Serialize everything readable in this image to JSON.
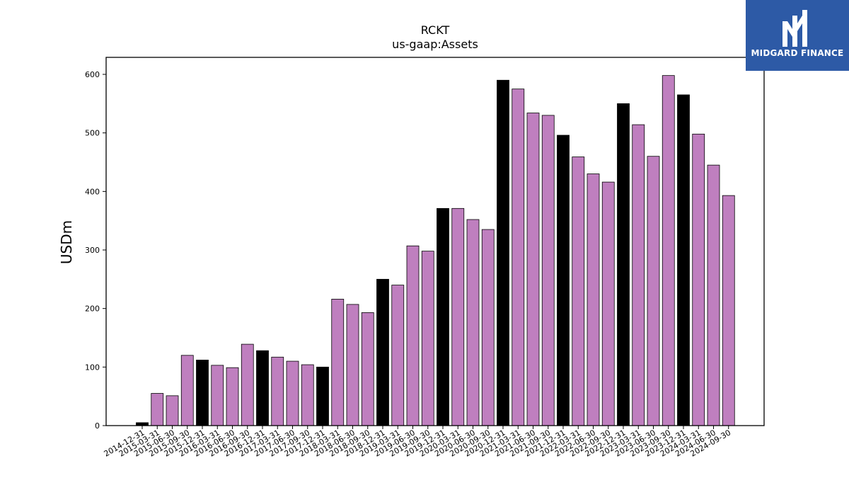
{
  "chart_data": {
    "type": "bar",
    "title": "RCKT",
    "subtitle": "us-gaap:Assets",
    "ylabel": "USDm",
    "xlabel": "",
    "ylim": [
      0,
      630
    ],
    "yticks": [
      0,
      100,
      200,
      300,
      400,
      500,
      600
    ],
    "grid": false,
    "categories": [
      "2014-12-31",
      "2015-03-31",
      "2015-06-30",
      "2015-09-30",
      "2015-12-31",
      "2016-03-31",
      "2016-06-30",
      "2016-09-30",
      "2016-12-31",
      "2017-03-31",
      "2017-06-30",
      "2017-09-30",
      "2017-12-31",
      "2018-03-31",
      "2018-06-30",
      "2018-09-30",
      "2018-12-31",
      "2019-03-31",
      "2019-06-30",
      "2019-09-30",
      "2019-12-31",
      "2020-03-31",
      "2020-06-30",
      "2020-09-30",
      "2020-12-31",
      "2021-03-31",
      "2021-06-30",
      "2021-09-30",
      "2021-12-31",
      "2022-03-31",
      "2022-06-30",
      "2022-09-30",
      "2022-12-31",
      "2023-03-31",
      "2023-06-30",
      "2023-09-30",
      "2023-12-31",
      "2024-03-31",
      "2024-06-30",
      "2024-09-30"
    ],
    "values": [
      5,
      55,
      51,
      120,
      112,
      103,
      99,
      139,
      128,
      117,
      110,
      104,
      100,
      216,
      207,
      193,
      250,
      240,
      307,
      298,
      371,
      371,
      352,
      335,
      590,
      575,
      534,
      530,
      496,
      459,
      430,
      416,
      550,
      514,
      460,
      598,
      565,
      498,
      445,
      393
    ],
    "colors": {
      "fiscal_year_end": "#000000",
      "quarter": "#bf7fbf",
      "edge": "#000000"
    }
  },
  "logo": {
    "text": "MIDGARD FINANCE"
  }
}
